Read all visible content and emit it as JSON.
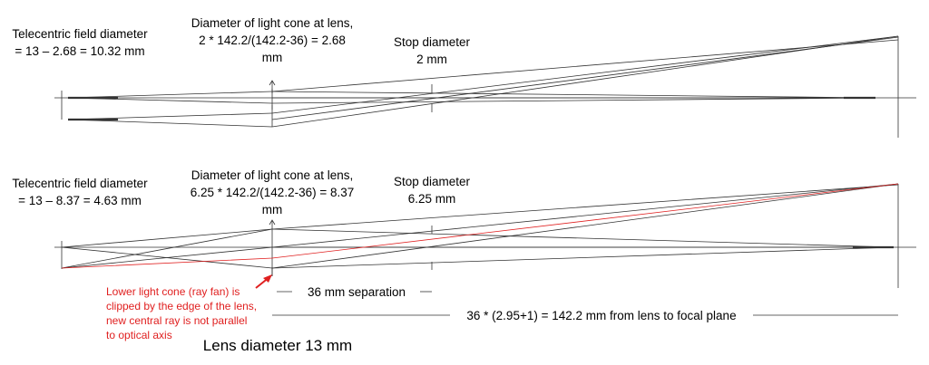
{
  "panels": [
    {
      "field_label": [
        "Telecentric field diameter",
        "= 13 – 2.68 = 10.32 mm"
      ],
      "cone_label": [
        "Diameter of light cone at lens,",
        "2 * 142.2/(142.2-36) = 2.68",
        "mm"
      ],
      "stop_label": [
        "Stop diameter",
        "2 mm"
      ]
    },
    {
      "field_label": [
        "Telecentric field diameter",
        "= 13 – 8.37 = 4.63 mm"
      ],
      "cone_label": [
        "Diameter of light cone at lens,",
        "6.25 * 142.2/(142.2-36) = 8.37",
        "mm"
      ],
      "stop_label": [
        "Stop diameter",
        "6.25 mm"
      ]
    }
  ],
  "clip_note": [
    "Lower light cone (ray fan) is",
    "clipped by the edge of the lens,",
    "new central ray is not parallel",
    "to optical axis"
  ],
  "separation_label": "36 mm separation",
  "focal_distance_label": "36 * (2.95+1) = 142.2 mm from lens to focal plane",
  "lens_label": "Lens diameter 13 mm"
}
